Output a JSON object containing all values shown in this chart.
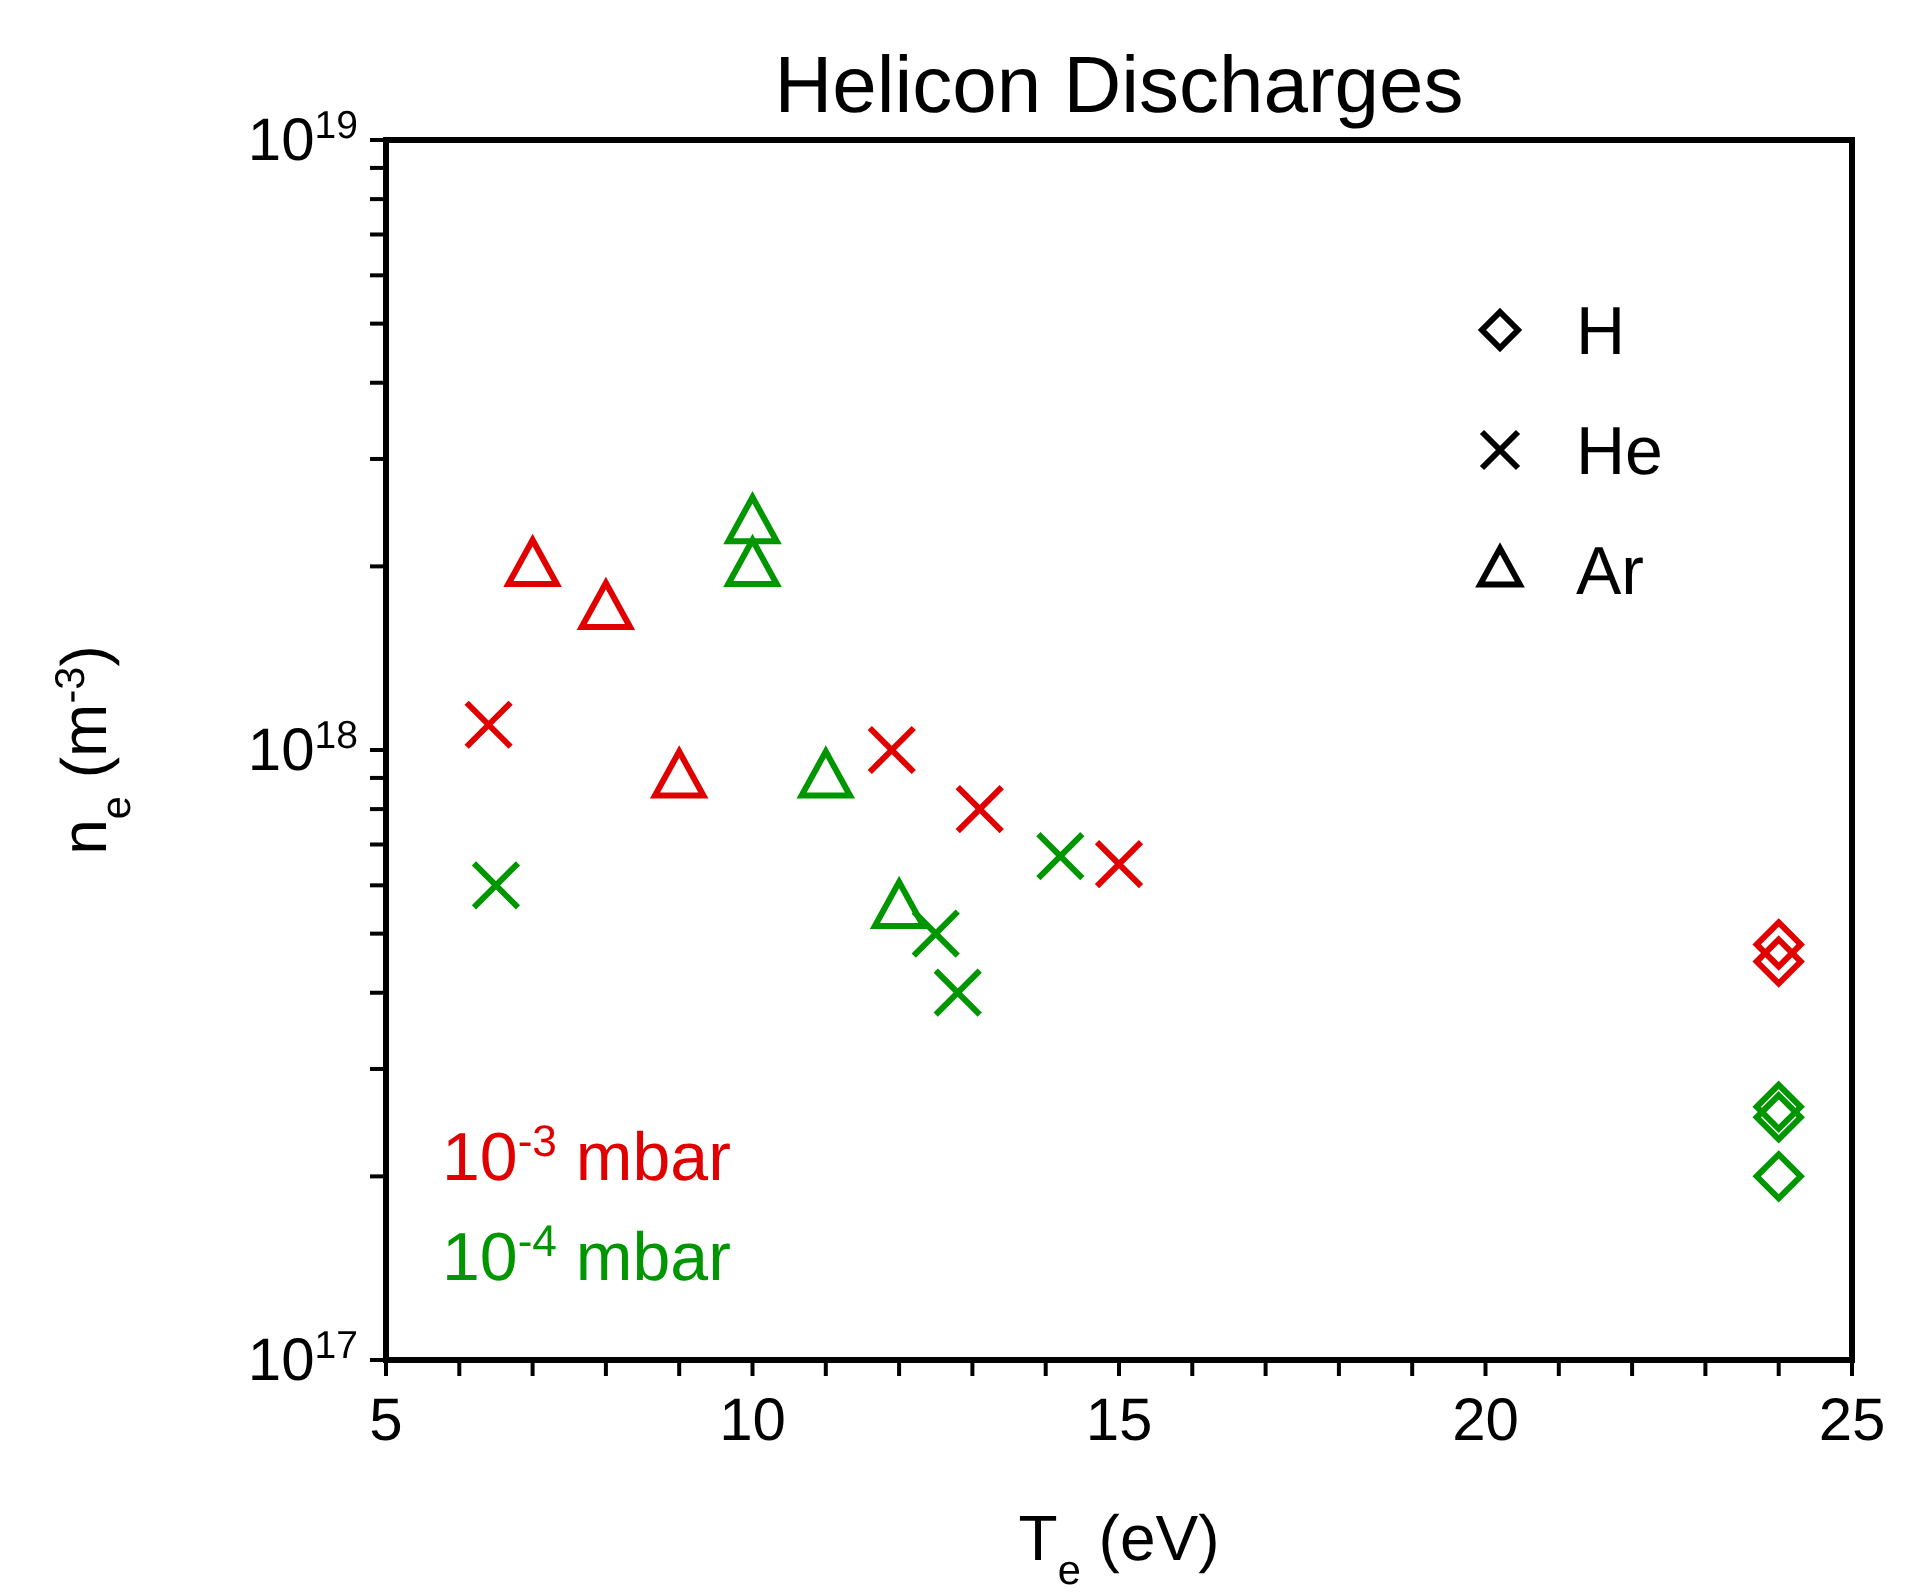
{
  "chart_data": {
    "type": "scatter",
    "title": "Helicon Discharges",
    "xlabel": "T$_{e}$ (eV)",
    "ylabel": "n$_{e}$ (m$^{-3}$)",
    "log": "y",
    "xlim": [
      5,
      25
    ],
    "xticks": [
      5,
      {
        "value": 6,
        "label": null
      },
      {
        "value": 7,
        "label": null
      },
      {
        "value": 8,
        "label": null
      },
      {
        "value": 9,
        "label": null
      },
      10,
      {
        "value": 11,
        "label": null
      },
      {
        "value": 12,
        "label": null
      },
      {
        "value": 13,
        "label": null
      },
      {
        "value": 14,
        "label": null
      },
      15,
      {
        "value": 16,
        "label": null
      },
      {
        "value": 17,
        "label": null
      },
      {
        "value": 18,
        "label": null
      },
      {
        "value": 19,
        "label": null
      },
      20,
      {
        "value": 21,
        "label": null
      },
      {
        "value": 22,
        "label": null
      },
      {
        "value": 23,
        "label": null
      },
      {
        "value": 24,
        "label": null
      },
      25
    ],
    "ylim": [
      1e+17,
      1e+19
    ],
    "yticks": [
      {
        "value": 1e+17,
        "label": "10$^{17}$"
      },
      {
        "value": 2e+17,
        "label": null
      },
      {
        "value": 3e+17,
        "label": null
      },
      {
        "value": 4e+17,
        "label": null
      },
      {
        "value": 5e+17,
        "label": null
      },
      {
        "value": 6e+17,
        "label": null
      },
      {
        "value": 7e+17,
        "label": null
      },
      {
        "value": 8e+17,
        "label": null
      },
      {
        "value": 9e+17,
        "label": null
      },
      {
        "value": 1e+18,
        "label": "10$^{18}$"
      },
      {
        "value": 2e+18,
        "label": null
      },
      {
        "value": 3e+18,
        "label": null
      },
      {
        "value": 4e+18,
        "label": null
      },
      {
        "value": 5e+18,
        "label": null
      },
      {
        "value": 6e+18,
        "label": null
      },
      {
        "value": 7e+18,
        "label": null
      },
      {
        "value": 8e+18,
        "label": null
      },
      {
        "value": 9e+18,
        "label": null
      },
      {
        "value": 1e+19,
        "label": "10$^{19}$"
      }
    ],
    "series": [
      {
        "marker": "diamond",
        "color": "#e00000",
        "x": [
          24,
          24
        ],
        "values": [
          4.8e+17,
          4.5e+17
        ]
      },
      {
        "marker": "diamond",
        "color": "#009600",
        "x": [
          24,
          24,
          24
        ],
        "values": [
          2.6e+17,
          2.5e+17,
          2e+17
        ]
      },
      {
        "marker": "cross",
        "color": "#e00000",
        "x": [
          6.4,
          11.9,
          13.1,
          15.0
        ],
        "values": [
          1.1e+18,
          1e+18,
          8e+17,
          6.5e+17
        ]
      },
      {
        "marker": "cross",
        "color": "#009600",
        "x": [
          6.5,
          12.5,
          12.8,
          14.2
        ],
        "values": [
          6e+17,
          5e+17,
          4e+17,
          6.7e+17
        ]
      },
      {
        "marker": "triangle",
        "color": "#e00000",
        "x": [
          7,
          8,
          9
        ],
        "values": [
          2e+18,
          1.7e+18,
          9e+17
        ]
      },
      {
        "marker": "triangle",
        "color": "#009600",
        "x": [
          10,
          10,
          11,
          12
        ],
        "values": [
          2.35e+18,
          2e+18,
          9e+17,
          5.5e+17
        ]
      }
    ],
    "annotations": [
      "H",
      "He",
      "Ar",
      "10$^{-3}$ mbar",
      "10$^{-4}$ mbar"
    ]
  }
}
